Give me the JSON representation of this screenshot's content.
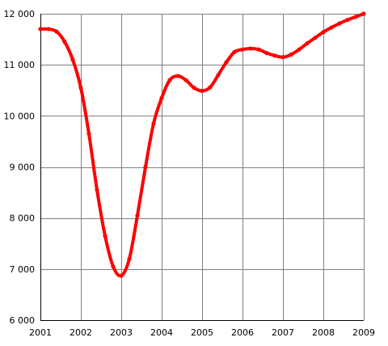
{
  "chart_data": {
    "type": "line",
    "title": "",
    "xlabel": "",
    "ylabel": "",
    "xlim": [
      2001,
      2009
    ],
    "ylim": [
      6000,
      12000
    ],
    "grid": true,
    "legend": "none",
    "line_color": "#ff0000",
    "x_ticks": [
      {
        "value": 2001,
        "label": "2001"
      },
      {
        "value": 2002,
        "label": "2002"
      },
      {
        "value": 2003,
        "label": "2003"
      },
      {
        "value": 2004,
        "label": "2004"
      },
      {
        "value": 2005,
        "label": "2005"
      },
      {
        "value": 2006,
        "label": "2006"
      },
      {
        "value": 2007,
        "label": "2007"
      },
      {
        "value": 2008,
        "label": "2008"
      },
      {
        "value": 2009,
        "label": "2009"
      }
    ],
    "y_ticks": [
      {
        "value": 6000,
        "label": "6 000"
      },
      {
        "value": 7000,
        "label": "7 000"
      },
      {
        "value": 8000,
        "label": "8 000"
      },
      {
        "value": 9000,
        "label": "9 000"
      },
      {
        "value": 10000,
        "label": "10 000"
      },
      {
        "value": 11000,
        "label": "11 000"
      },
      {
        "value": 12000,
        "label": "12 000"
      }
    ],
    "series": [
      {
        "x": [
          2001,
          2001.2,
          2001.4,
          2001.6,
          2001.8,
          2002,
          2002.2,
          2002.4,
          2002.6,
          2002.8,
          2003,
          2003.2,
          2003.4,
          2003.6,
          2003.8,
          2004,
          2004.2,
          2004.4,
          2004.6,
          2004.8,
          2005,
          2005.2,
          2005.4,
          2005.6,
          2005.8,
          2006,
          2006.2,
          2006.4,
          2006.6,
          2006.8,
          2007,
          2007.2,
          2007.4,
          2007.6,
          2007.8,
          2008,
          2008.2,
          2008.4,
          2008.6,
          2008.8,
          2009
        ],
        "values": [
          11700,
          11700,
          11650,
          11450,
          11100,
          10550,
          9650,
          8550,
          7650,
          7050,
          6870,
          7200,
          8050,
          9000,
          9850,
          10350,
          10700,
          10780,
          10700,
          10550,
          10490,
          10560,
          10800,
          11050,
          11250,
          11300,
          11320,
          11300,
          11230,
          11180,
          11150,
          11200,
          11300,
          11420,
          11530,
          11640,
          11730,
          11810,
          11880,
          11940,
          12000
        ]
      }
    ]
  }
}
